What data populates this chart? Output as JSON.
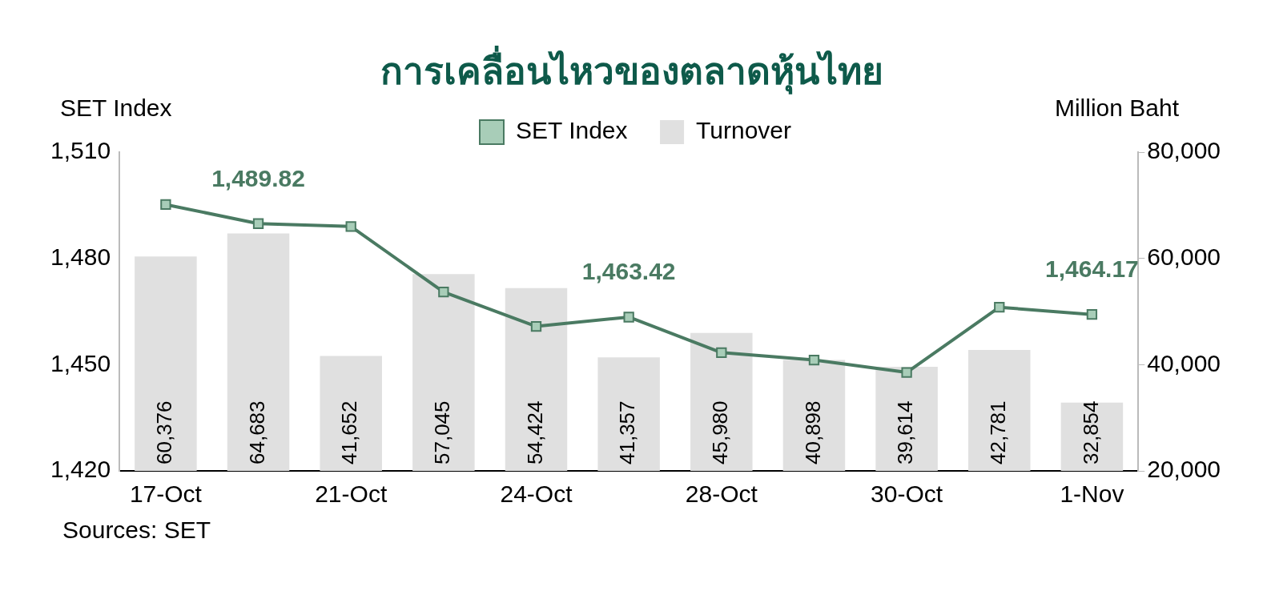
{
  "chart_data": {
    "type": "bar",
    "title": "การเคลื่อนไหวของตลาดหุ้นไทย",
    "categories": [
      "17-Oct",
      null,
      "21-Oct",
      null,
      "24-Oct",
      null,
      "28-Oct",
      null,
      "30-Oct",
      null,
      "1-Nov"
    ],
    "series": [
      {
        "name": "Turnover",
        "color": "#e0e0e0",
        "axis": "y2",
        "values": [
          60376,
          64683,
          41652,
          57045,
          54424,
          41357,
          45980,
          40898,
          39614,
          42781,
          32854
        ],
        "value_labels": [
          "60,376",
          "64,683",
          "41,652",
          "57,045",
          "54,424",
          "41,357",
          "45,980",
          "40,898",
          "39,614",
          "42,781",
          "32,854"
        ]
      },
      {
        "type": "line",
        "name": "SET Index",
        "color": "#4a7a62",
        "values": [
          1495.2,
          1489.82,
          1489.0,
          1470.5,
          1460.8,
          1463.42,
          1453.4,
          1451.3,
          1447.8,
          1466.2,
          1464.17
        ],
        "value_labels": [
          null,
          "1,489.82",
          null,
          null,
          null,
          "1,463.42",
          null,
          null,
          null,
          null,
          "1,464.17"
        ]
      }
    ],
    "ylim": [
      1420,
      1510
    ],
    "yticks": [
      {
        "value": 1420,
        "label": "1,420"
      },
      {
        "value": 1450,
        "label": "1,450"
      },
      {
        "value": 1480,
        "label": "1,480"
      },
      {
        "value": 1510,
        "label": "1,510"
      }
    ],
    "y2lim": [
      20000,
      80000
    ],
    "y2ticks": [
      {
        "value": 20000,
        "label": "20,000"
      },
      {
        "value": 40000,
        "label": "40,000"
      },
      {
        "value": 60000,
        "label": "60,000"
      },
      {
        "value": 80000,
        "label": "80,000"
      }
    ],
    "ylabel": "SET Index",
    "y2label": "Million Baht",
    "marker": "square",
    "legend": "top",
    "grid": false,
    "annotations": [
      "Sources: SET"
    ]
  }
}
